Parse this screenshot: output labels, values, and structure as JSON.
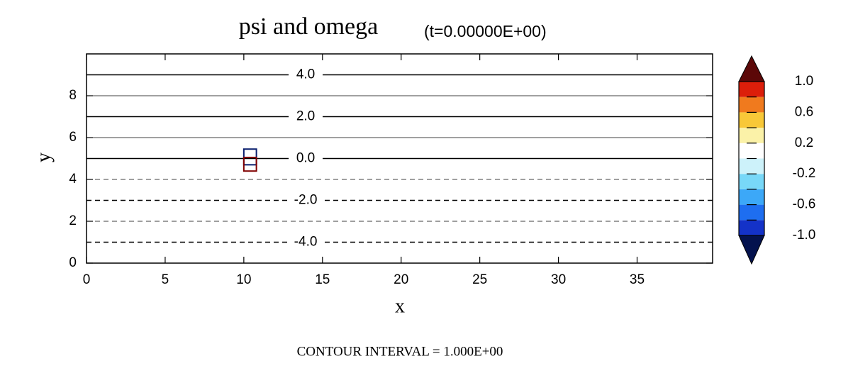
{
  "chart_data": {
    "type": "contour",
    "title": "psi and omega",
    "subtitle": "(t=0.00000E+00)",
    "xlabel": "x",
    "ylabel": "y",
    "footer": "CONTOUR INTERVAL = 1.000E+00",
    "xlim": [
      0,
      39.8
    ],
    "ylim": [
      0,
      10
    ],
    "xticks": [
      0,
      5,
      10,
      15,
      20,
      25,
      30,
      35
    ],
    "yticks": [
      0,
      2,
      4,
      6,
      8
    ],
    "contours": {
      "levels": [
        -4,
        -3,
        -2,
        -1,
        0,
        1,
        2,
        3,
        4
      ],
      "y": [
        1,
        2,
        3,
        4,
        5,
        6,
        7,
        8,
        9
      ],
      "labels": [
        "-4.0",
        null,
        "-2.0",
        null,
        "0.0",
        null,
        "2.0",
        null,
        "4.0"
      ],
      "color": "#000000"
    },
    "omega_patches": [
      {
        "value": -1,
        "x": [
          10,
          10.8
        ],
        "y": [
          4.7,
          5.45
        ],
        "color": "#0a1f6e"
      },
      {
        "value": 1,
        "x": [
          10,
          10.8
        ],
        "y": [
          4.4,
          5.05
        ],
        "color": "#800000"
      }
    ],
    "colorbar": {
      "bounds": [
        -1,
        -0.8,
        -0.6,
        -0.4,
        -0.2,
        0,
        0.2,
        0.4,
        0.6,
        0.8,
        1
      ],
      "colors": [
        "#1432c8",
        "#1e6ef0",
        "#3ca8f8",
        "#78d8f8",
        "#cdf2fa",
        "#ffffff",
        "#fbf2a8",
        "#f8c838",
        "#f07a1e",
        "#dc1e0a"
      ],
      "extend_colors": [
        "#04124e",
        "#5c0808"
      ],
      "ticks": [
        {
          "value": 1,
          "label": "1.0"
        },
        0.6,
        0.2,
        -0.2,
        -0.6,
        {
          "value": -1,
          "label": "-1.0"
        }
      ]
    }
  }
}
